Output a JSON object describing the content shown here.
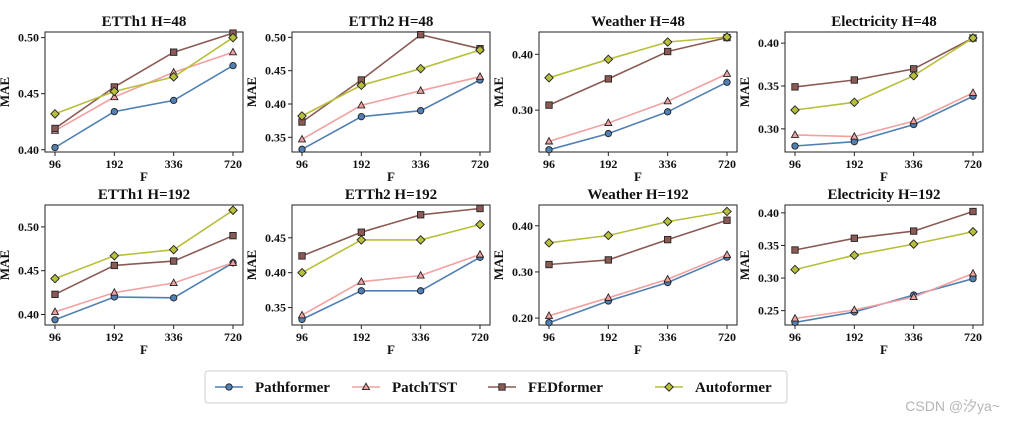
{
  "colors": {
    "Pathformer": "#4f7fb3",
    "PatchTST": "#f2a0a0",
    "FEDformer": "#8b5a55",
    "Autoformer": "#b8bf3b"
  },
  "legend": [
    "Pathformer",
    "PatchTST",
    "FEDformer",
    "Autoformer"
  ],
  "watermark": "CSDN @汐ya~",
  "chart_data": [
    {
      "type": "line",
      "title": "ETTh1 H=48",
      "xlabel": "F",
      "ylabel": "MAE",
      "categories": [
        "96",
        "192",
        "336",
        "720"
      ],
      "ylim": [
        0.398,
        0.505
      ],
      "yticks": [
        "0.40",
        "0.45",
        "0.50"
      ],
      "series": [
        {
          "name": "Pathformer",
          "values": [
            0.402,
            0.434,
            0.444,
            0.475
          ]
        },
        {
          "name": "PatchTST",
          "values": [
            0.417,
            0.447,
            0.469,
            0.487
          ]
        },
        {
          "name": "FEDformer",
          "values": [
            0.419,
            0.456,
            0.487,
            0.504
          ]
        },
        {
          "name": "Autoformer",
          "values": [
            0.432,
            0.452,
            0.465,
            0.5
          ]
        }
      ]
    },
    {
      "type": "line",
      "title": "ETTh2 H=48",
      "xlabel": "F",
      "ylabel": "MAE",
      "categories": [
        "96",
        "192",
        "336",
        "720"
      ],
      "ylim": [
        0.328,
        0.508
      ],
      "yticks": [
        "0.35",
        "0.40",
        "0.45",
        "0.50"
      ],
      "series": [
        {
          "name": "Pathformer",
          "values": [
            0.332,
            0.381,
            0.39,
            0.436
          ]
        },
        {
          "name": "PatchTST",
          "values": [
            0.347,
            0.398,
            0.42,
            0.441
          ]
        },
        {
          "name": "FEDformer",
          "values": [
            0.373,
            0.436,
            0.504,
            0.483
          ]
        },
        {
          "name": "Autoformer",
          "values": [
            0.382,
            0.428,
            0.453,
            0.481
          ]
        }
      ]
    },
    {
      "type": "line",
      "title": "Weather H=48",
      "xlabel": "F",
      "ylabel": "MAE",
      "categories": [
        "96",
        "192",
        "336",
        "720"
      ],
      "ylim": [
        0.225,
        0.44
      ],
      "yticks": [
        "0.30",
        "0.40"
      ],
      "series": [
        {
          "name": "Pathformer",
          "values": [
            0.229,
            0.258,
            0.297,
            0.35
          ]
        },
        {
          "name": "PatchTST",
          "values": [
            0.244,
            0.277,
            0.316,
            0.365
          ]
        },
        {
          "name": "FEDformer",
          "values": [
            0.309,
            0.356,
            0.405,
            0.43
          ]
        },
        {
          "name": "Autoformer",
          "values": [
            0.358,
            0.391,
            0.422,
            0.431
          ]
        }
      ]
    },
    {
      "type": "line",
      "title": "Electricity H=48",
      "xlabel": "F",
      "ylabel": "MAE",
      "categories": [
        "96",
        "192",
        "336",
        "720"
      ],
      "ylim": [
        0.273,
        0.413
      ],
      "yticks": [
        "0.30",
        "0.35",
        "0.40"
      ],
      "series": [
        {
          "name": "Pathformer",
          "values": [
            0.28,
            0.285,
            0.305,
            0.338
          ]
        },
        {
          "name": "PatchTST",
          "values": [
            0.293,
            0.291,
            0.309,
            0.342
          ]
        },
        {
          "name": "FEDformer",
          "values": [
            0.349,
            0.357,
            0.37,
            0.406
          ]
        },
        {
          "name": "Autoformer",
          "values": [
            0.322,
            0.331,
            0.362,
            0.406
          ]
        }
      ]
    },
    {
      "type": "line",
      "title": "ETTh1 H=192",
      "xlabel": "F",
      "ylabel": "MAE",
      "categories": [
        "96",
        "192",
        "336",
        "720"
      ],
      "ylim": [
        0.388,
        0.525
      ],
      "yticks": [
        "0.40",
        "0.45",
        "0.50"
      ],
      "series": [
        {
          "name": "Pathformer",
          "values": [
            0.394,
            0.42,
            0.419,
            0.459
          ]
        },
        {
          "name": "PatchTST",
          "values": [
            0.403,
            0.425,
            0.436,
            0.459
          ]
        },
        {
          "name": "FEDformer",
          "values": [
            0.423,
            0.456,
            0.461,
            0.49
          ]
        },
        {
          "name": "Autoformer",
          "values": [
            0.441,
            0.467,
            0.474,
            0.519
          ]
        }
      ]
    },
    {
      "type": "line",
      "title": "ETTh2 H=192",
      "xlabel": "F",
      "ylabel": "MAE",
      "categories": [
        "96",
        "192",
        "336",
        "720"
      ],
      "ylim": [
        0.325,
        0.497
      ],
      "yticks": [
        "0.35",
        "0.40",
        "0.45"
      ],
      "series": [
        {
          "name": "Pathformer",
          "values": [
            0.333,
            0.374,
            0.374,
            0.422
          ]
        },
        {
          "name": "PatchTST",
          "values": [
            0.339,
            0.387,
            0.396,
            0.426
          ]
        },
        {
          "name": "FEDformer",
          "values": [
            0.424,
            0.458,
            0.483,
            0.492
          ]
        },
        {
          "name": "Autoformer",
          "values": [
            0.4,
            0.447,
            0.447,
            0.469
          ]
        }
      ]
    },
    {
      "type": "line",
      "title": "Weather H=192",
      "xlabel": "F",
      "ylabel": "MAE",
      "categories": [
        "96",
        "192",
        "336",
        "720"
      ],
      "ylim": [
        0.185,
        0.445
      ],
      "yticks": [
        "0.20",
        "0.30",
        "0.40"
      ],
      "series": [
        {
          "name": "Pathformer",
          "values": [
            0.19,
            0.237,
            0.277,
            0.332
          ]
        },
        {
          "name": "PatchTST",
          "values": [
            0.205,
            0.244,
            0.284,
            0.337
          ]
        },
        {
          "name": "FEDformer",
          "values": [
            0.316,
            0.326,
            0.37,
            0.412
          ]
        },
        {
          "name": "Autoformer",
          "values": [
            0.363,
            0.379,
            0.409,
            0.431
          ]
        }
      ]
    },
    {
      "type": "line",
      "title": "Electricity H=192",
      "xlabel": "F",
      "ylabel": "MAE",
      "categories": [
        "96",
        "192",
        "336",
        "720"
      ],
      "ylim": [
        0.228,
        0.412
      ],
      "yticks": [
        "0.25",
        "0.30",
        "0.35",
        "0.40"
      ],
      "series": [
        {
          "name": "Pathformer",
          "values": [
            0.232,
            0.248,
            0.274,
            0.299
          ]
        },
        {
          "name": "PatchTST",
          "values": [
            0.238,
            0.251,
            0.271,
            0.307
          ]
        },
        {
          "name": "FEDformer",
          "values": [
            0.343,
            0.361,
            0.372,
            0.402
          ]
        },
        {
          "name": "Autoformer",
          "values": [
            0.313,
            0.335,
            0.352,
            0.371
          ]
        }
      ]
    }
  ]
}
